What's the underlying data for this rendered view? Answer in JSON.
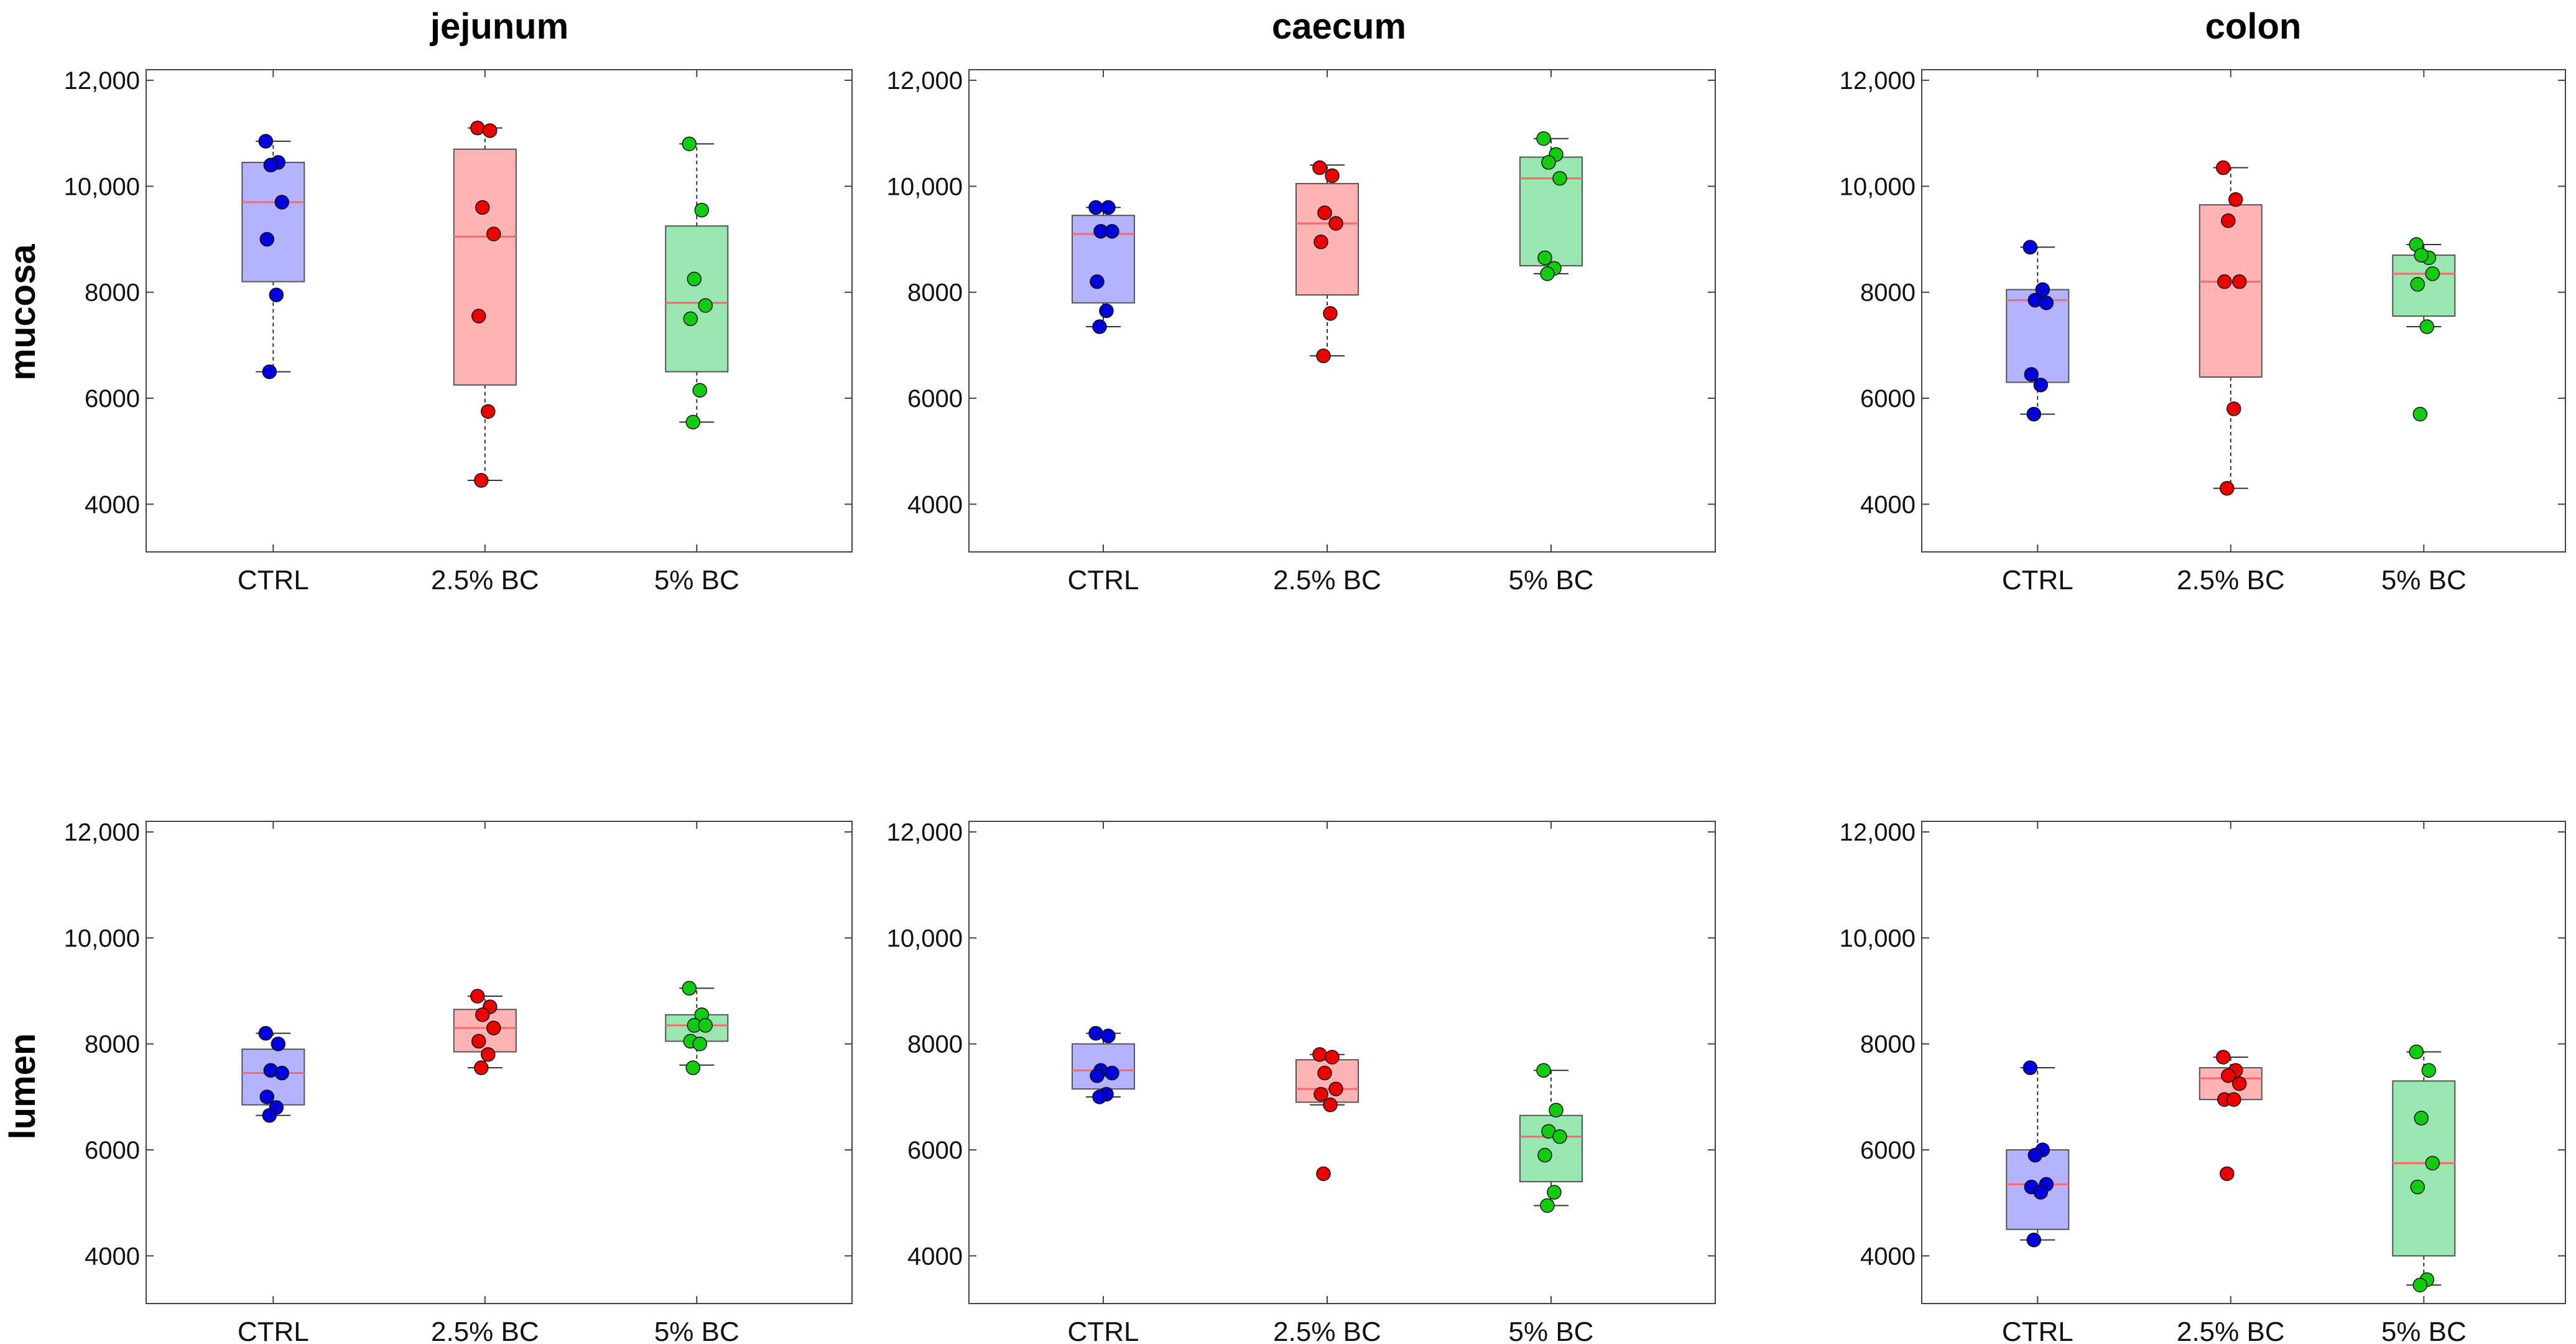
{
  "figure": {
    "column_titles": [
      "jejunum",
      "caecum",
      "colon"
    ],
    "row_titles": [
      "mucosa",
      "lumen"
    ]
  },
  "colors": {
    "CTRL": {
      "fill": "#b3b3ff",
      "point": "#0000dd"
    },
    "2.5% BC": {
      "fill": "#ffb3b3",
      "point": "#ee0000"
    },
    "5% BC": {
      "fill": "#99e6b0",
      "point": "#11cc11"
    },
    "median_line": "#ff6666",
    "frame": "#444444"
  },
  "chart_data": [
    {
      "type": "box",
      "title": "jejunum",
      "row": "mucosa",
      "categories": [
        "CTRL",
        "2.5% BC",
        "5% BC"
      ],
      "ylim": [
        3100,
        12200
      ],
      "yticks": [
        4000,
        6000,
        8000,
        10000,
        12000
      ],
      "ytick_labels": [
        "4000",
        "6000",
        "8000",
        "10,000",
        "12,000"
      ],
      "series": [
        {
          "name": "CTRL",
          "q1": 8200,
          "median": 9700,
          "q3": 10450,
          "whisker_low": 6500,
          "whisker_high": 10850,
          "points": [
            10850,
            10450,
            10400,
            9700,
            9000,
            7950,
            6500
          ]
        },
        {
          "name": "2.5% BC",
          "q1": 6250,
          "median": 9050,
          "q3": 10700,
          "whisker_low": 4450,
          "whisker_high": 11100,
          "points": [
            11100,
            11050,
            9600,
            9100,
            7550,
            5750,
            4450
          ]
        },
        {
          "name": "5% BC",
          "q1": 6500,
          "median": 7800,
          "q3": 9250,
          "whisker_low": 5550,
          "whisker_high": 10800,
          "points": [
            10800,
            9550,
            8250,
            7750,
            7500,
            6150,
            5550
          ]
        }
      ]
    },
    {
      "type": "box",
      "title": "caecum",
      "row": "mucosa",
      "categories": [
        "CTRL",
        "2.5% BC",
        "5% BC"
      ],
      "ylim": [
        3100,
        12200
      ],
      "yticks": [
        4000,
        6000,
        8000,
        10000,
        12000
      ],
      "ytick_labels": [
        "4000",
        "6000",
        "8000",
        "10,000",
        "12,000"
      ],
      "series": [
        {
          "name": "CTRL",
          "q1": 7800,
          "median": 9100,
          "q3": 9450,
          "whisker_low": 7350,
          "whisker_high": 9600,
          "points": [
            9600,
            9600,
            9150,
            9150,
            8200,
            7650,
            7350
          ]
        },
        {
          "name": "2.5% BC",
          "q1": 7950,
          "median": 9300,
          "q3": 10050,
          "whisker_low": 6800,
          "whisker_high": 10400,
          "points": [
            10350,
            10200,
            9500,
            9300,
            8950,
            7600,
            6800
          ]
        },
        {
          "name": "5% BC",
          "q1": 8500,
          "median": 10150,
          "q3": 10550,
          "whisker_low": 8350,
          "whisker_high": 10900,
          "points": [
            10900,
            10600,
            10450,
            10150,
            8650,
            8450,
            8350
          ]
        }
      ]
    },
    {
      "type": "box",
      "title": "colon",
      "row": "mucosa",
      "categories": [
        "CTRL",
        "2.5% BC",
        "5% BC"
      ],
      "ylim": [
        3100,
        12200
      ],
      "yticks": [
        4000,
        6000,
        8000,
        10000,
        12000
      ],
      "ytick_labels": [
        "4000",
        "6000",
        "8000",
        "10,000",
        "12,000"
      ],
      "series": [
        {
          "name": "CTRL",
          "q1": 6300,
          "median": 7850,
          "q3": 8050,
          "whisker_low": 5700,
          "whisker_high": 8850,
          "points": [
            8850,
            8050,
            7850,
            7800,
            6450,
            6250,
            5700
          ]
        },
        {
          "name": "2.5% BC",
          "q1": 6400,
          "median": 8200,
          "q3": 9650,
          "whisker_low": 4300,
          "whisker_high": 10350,
          "points": [
            10350,
            9750,
            9350,
            8200,
            8200,
            5800,
            4300
          ]
        },
        {
          "name": "5% BC",
          "q1": 7550,
          "median": 8350,
          "q3": 8700,
          "whisker_low": 7350,
          "whisker_high": 8900,
          "points": [
            8900,
            8650,
            8700,
            8350,
            8150,
            7350,
            5700
          ]
        }
      ]
    },
    {
      "type": "box",
      "title": "jejunum",
      "row": "lumen",
      "categories": [
        "CTRL",
        "2.5% BC",
        "5% BC"
      ],
      "ylim": [
        3100,
        12200
      ],
      "yticks": [
        4000,
        6000,
        8000,
        10000,
        12000
      ],
      "ytick_labels": [
        "4000",
        "6000",
        "8000",
        "10,000",
        "12,000"
      ],
      "series": [
        {
          "name": "CTRL",
          "q1": 6850,
          "median": 7450,
          "q3": 7900,
          "whisker_low": 6650,
          "whisker_high": 8200,
          "points": [
            8200,
            8000,
            7500,
            7450,
            7000,
            6800,
            6650
          ]
        },
        {
          "name": "2.5% BC",
          "q1": 7850,
          "median": 8300,
          "q3": 8650,
          "whisker_low": 7550,
          "whisker_high": 8900,
          "points": [
            8900,
            8700,
            8550,
            8300,
            8050,
            7800,
            7550
          ]
        },
        {
          "name": "5% BC",
          "q1": 8050,
          "median": 8350,
          "q3": 8550,
          "whisker_low": 7600,
          "whisker_high": 9050,
          "points": [
            9050,
            8550,
            8350,
            8350,
            8050,
            8000,
            7550
          ]
        }
      ]
    },
    {
      "type": "box",
      "title": "caecum",
      "row": "lumen",
      "categories": [
        "CTRL",
        "2.5% BC",
        "5% BC"
      ],
      "ylim": [
        3100,
        12200
      ],
      "yticks": [
        4000,
        6000,
        8000,
        10000,
        12000
      ],
      "ytick_labels": [
        "4000",
        "6000",
        "8000",
        "10,000",
        "12,000"
      ],
      "series": [
        {
          "name": "CTRL",
          "q1": 7150,
          "median": 7500,
          "q3": 8000,
          "whisker_low": 7000,
          "whisker_high": 8200,
          "points": [
            8200,
            8150,
            7500,
            7450,
            7400,
            7050,
            7000
          ]
        },
        {
          "name": "2.5% BC",
          "q1": 6900,
          "median": 7150,
          "q3": 7700,
          "whisker_low": 6850,
          "whisker_high": 7800,
          "points": [
            7800,
            7750,
            7450,
            7150,
            7050,
            6850,
            5550
          ]
        },
        {
          "name": "5% BC",
          "q1": 5400,
          "median": 6250,
          "q3": 6650,
          "whisker_low": 4950,
          "whisker_high": 7500,
          "points": [
            7500,
            6750,
            6350,
            6250,
            5900,
            5200,
            4950
          ]
        }
      ]
    },
    {
      "type": "box",
      "title": "colon",
      "row": "lumen",
      "categories": [
        "CTRL",
        "2.5% BC",
        "5% BC"
      ],
      "ylim": [
        3100,
        12200
      ],
      "yticks": [
        4000,
        6000,
        8000,
        10000,
        12000
      ],
      "ytick_labels": [
        "4000",
        "6000",
        "8000",
        "10,000",
        "12,000"
      ],
      "series": [
        {
          "name": "CTRL",
          "q1": 4500,
          "median": 5350,
          "q3": 6000,
          "whisker_low": 4300,
          "whisker_high": 7550,
          "points": [
            7550,
            6000,
            5900,
            5350,
            5300,
            5200,
            4300
          ]
        },
        {
          "name": "2.5% BC",
          "q1": 6950,
          "median": 7350,
          "q3": 7550,
          "whisker_low": 6950,
          "whisker_high": 7750,
          "points": [
            7750,
            7500,
            7400,
            7250,
            6950,
            6950,
            5550
          ]
        },
        {
          "name": "5% BC",
          "q1": 4000,
          "median": 5750,
          "q3": 7300,
          "whisker_low": 3450,
          "whisker_high": 7850,
          "points": [
            7850,
            7500,
            6600,
            5750,
            5300,
            3550,
            3450
          ]
        }
      ]
    }
  ]
}
